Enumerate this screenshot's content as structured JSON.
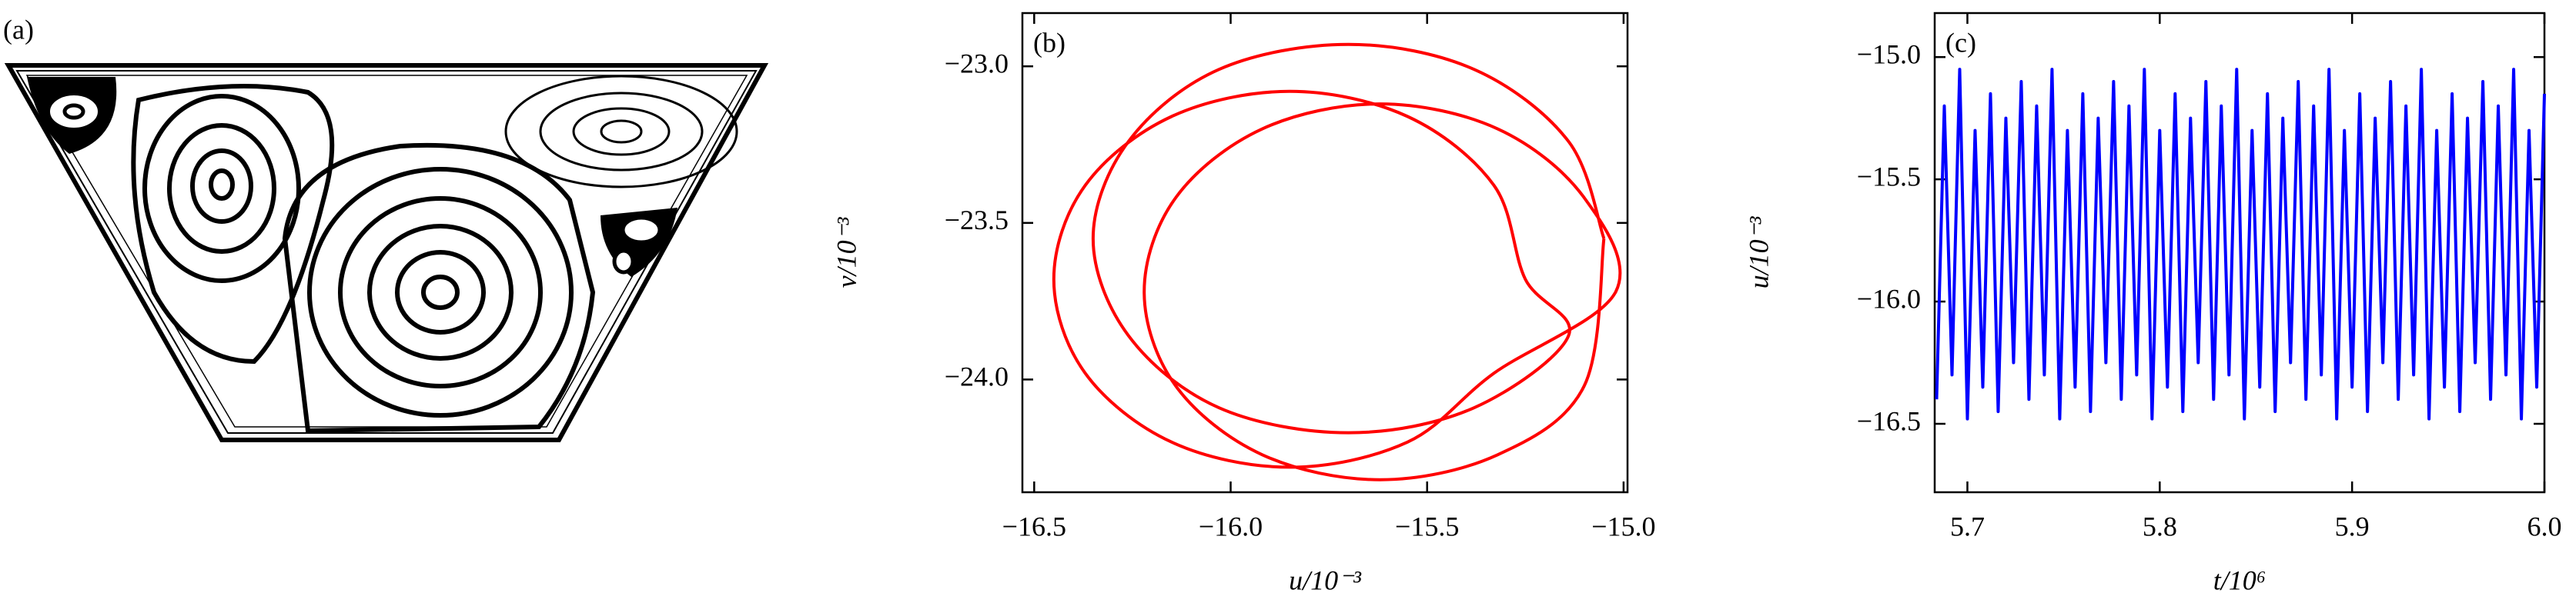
{
  "chart_data": [
    {
      "type": "streamlines",
      "label": "(a)"
    },
    {
      "type": "line",
      "label": "(b)",
      "x_label": "u/10⁻³",
      "y_label": "v/10⁻³",
      "color": "#ff0000",
      "xlim": [
        -16.53,
        -14.99
      ],
      "ylim": [
        -24.36,
        -22.83
      ],
      "xticks": [
        {
          "value": -16.5,
          "label": "−16.5"
        },
        {
          "value": -16,
          "label": "−16.0"
        },
        {
          "value": -15.5,
          "label": "−15.5"
        },
        {
          "value": -15,
          "label": "−15.0"
        }
      ],
      "yticks": [
        {
          "value": -23,
          "label": "−23.0"
        },
        {
          "value": -23.5,
          "label": "−23.5"
        },
        {
          "value": -24,
          "label": "−24.0"
        }
      ],
      "x": [
        -15.05,
        -15.14,
        -15.38,
        -15.7,
        -16.03,
        -16.26,
        -16.35,
        -16.26,
        -16.03,
        -15.7,
        -15.38,
        -15.14,
        -15.25,
        -15.33,
        -15.55,
        -15.85,
        -16.15,
        -16.37,
        -16.45,
        -16.37,
        -16.15,
        -15.85,
        -15.55,
        -15.33,
        -15.02,
        -15.1,
        -15.32,
        -15.62,
        -15.92,
        -16.14,
        -16.22,
        -16.14,
        -15.92,
        -15.62,
        -15.32,
        -15.1,
        -15.05
      ],
      "values": [
        -23.55,
        -23.24,
        -23.01,
        -22.93,
        -23.01,
        -23.24,
        -23.55,
        -23.86,
        -24.09,
        -24.17,
        -24.09,
        -23.86,
        -23.68,
        -23.38,
        -23.16,
        -23.08,
        -23.16,
        -23.38,
        -23.68,
        -23.98,
        -24.2,
        -24.28,
        -24.2,
        -23.98,
        -23.72,
        -23.42,
        -23.2,
        -23.12,
        -23.2,
        -23.42,
        -23.72,
        -24.02,
        -24.24,
        -24.32,
        -24.24,
        -24.02,
        -23.55
      ]
    },
    {
      "type": "line",
      "label": "(c)",
      "x_label": "t/10⁶",
      "y_label": "u/10⁻³",
      "color": "#0000ff",
      "xlim": [
        5.683,
        6.0
      ],
      "ylim": [
        -16.78,
        -14.82
      ],
      "xticks": [
        5.7,
        5.8,
        5.9,
        {
          "value": 6.0,
          "label": "6.0"
        }
      ],
      "yticks": [
        {
          "value": -15,
          "label": "−15.0"
        },
        {
          "value": -15.5,
          "label": "−15.5"
        },
        {
          "value": -16,
          "label": "−16.0"
        },
        {
          "value": -16.5,
          "label": "−16.5"
        }
      ],
      "x": [
        5.684,
        5.688,
        5.692,
        5.696,
        5.7,
        5.704,
        5.708,
        5.712,
        5.716,
        5.72,
        5.724,
        5.728,
        5.732,
        5.736,
        5.74,
        5.744,
        5.748,
        5.752,
        5.756,
        5.76,
        5.764,
        5.768,
        5.772,
        5.776,
        5.78,
        5.784,
        5.788,
        5.792,
        5.796,
        5.8,
        5.804,
        5.808,
        5.812,
        5.816,
        5.82,
        5.824,
        5.828,
        5.832,
        5.836,
        5.84,
        5.844,
        5.848,
        5.852,
        5.856,
        5.86,
        5.864,
        5.868,
        5.872,
        5.876,
        5.88,
        5.884,
        5.888,
        5.892,
        5.896,
        5.9,
        5.904,
        5.908,
        5.912,
        5.916,
        5.92,
        5.924,
        5.928,
        5.932,
        5.936,
        5.94,
        5.944,
        5.948,
        5.952,
        5.956,
        5.96,
        5.964,
        5.968,
        5.972,
        5.976,
        5.98,
        5.984,
        5.988,
        5.992,
        5.996,
        6.0
      ],
      "values": [
        -16.4,
        -15.2,
        -16.3,
        -15.05,
        -16.48,
        -15.3,
        -16.35,
        -15.15,
        -16.45,
        -15.25,
        -16.25,
        -15.1,
        -16.4,
        -15.2,
        -16.3,
        -15.05,
        -16.48,
        -15.3,
        -16.35,
        -15.15,
        -16.45,
        -15.25,
        -16.25,
        -15.1,
        -16.4,
        -15.2,
        -16.3,
        -15.05,
        -16.48,
        -15.3,
        -16.35,
        -15.15,
        -16.45,
        -15.25,
        -16.25,
        -15.1,
        -16.4,
        -15.2,
        -16.3,
        -15.05,
        -16.48,
        -15.3,
        -16.35,
        -15.15,
        -16.45,
        -15.25,
        -16.25,
        -15.1,
        -16.4,
        -15.2,
        -16.3,
        -15.05,
        -16.48,
        -15.3,
        -16.35,
        -15.15,
        -16.45,
        -15.25,
        -16.25,
        -15.1,
        -16.4,
        -15.2,
        -16.3,
        -15.05,
        -16.48,
        -15.3,
        -16.35,
        -15.15,
        -16.45,
        -15.25,
        -16.25,
        -15.1,
        -16.4,
        -15.2,
        -16.3,
        -15.05,
        -16.48,
        -15.3,
        -16.35,
        -15.15
      ]
    }
  ]
}
